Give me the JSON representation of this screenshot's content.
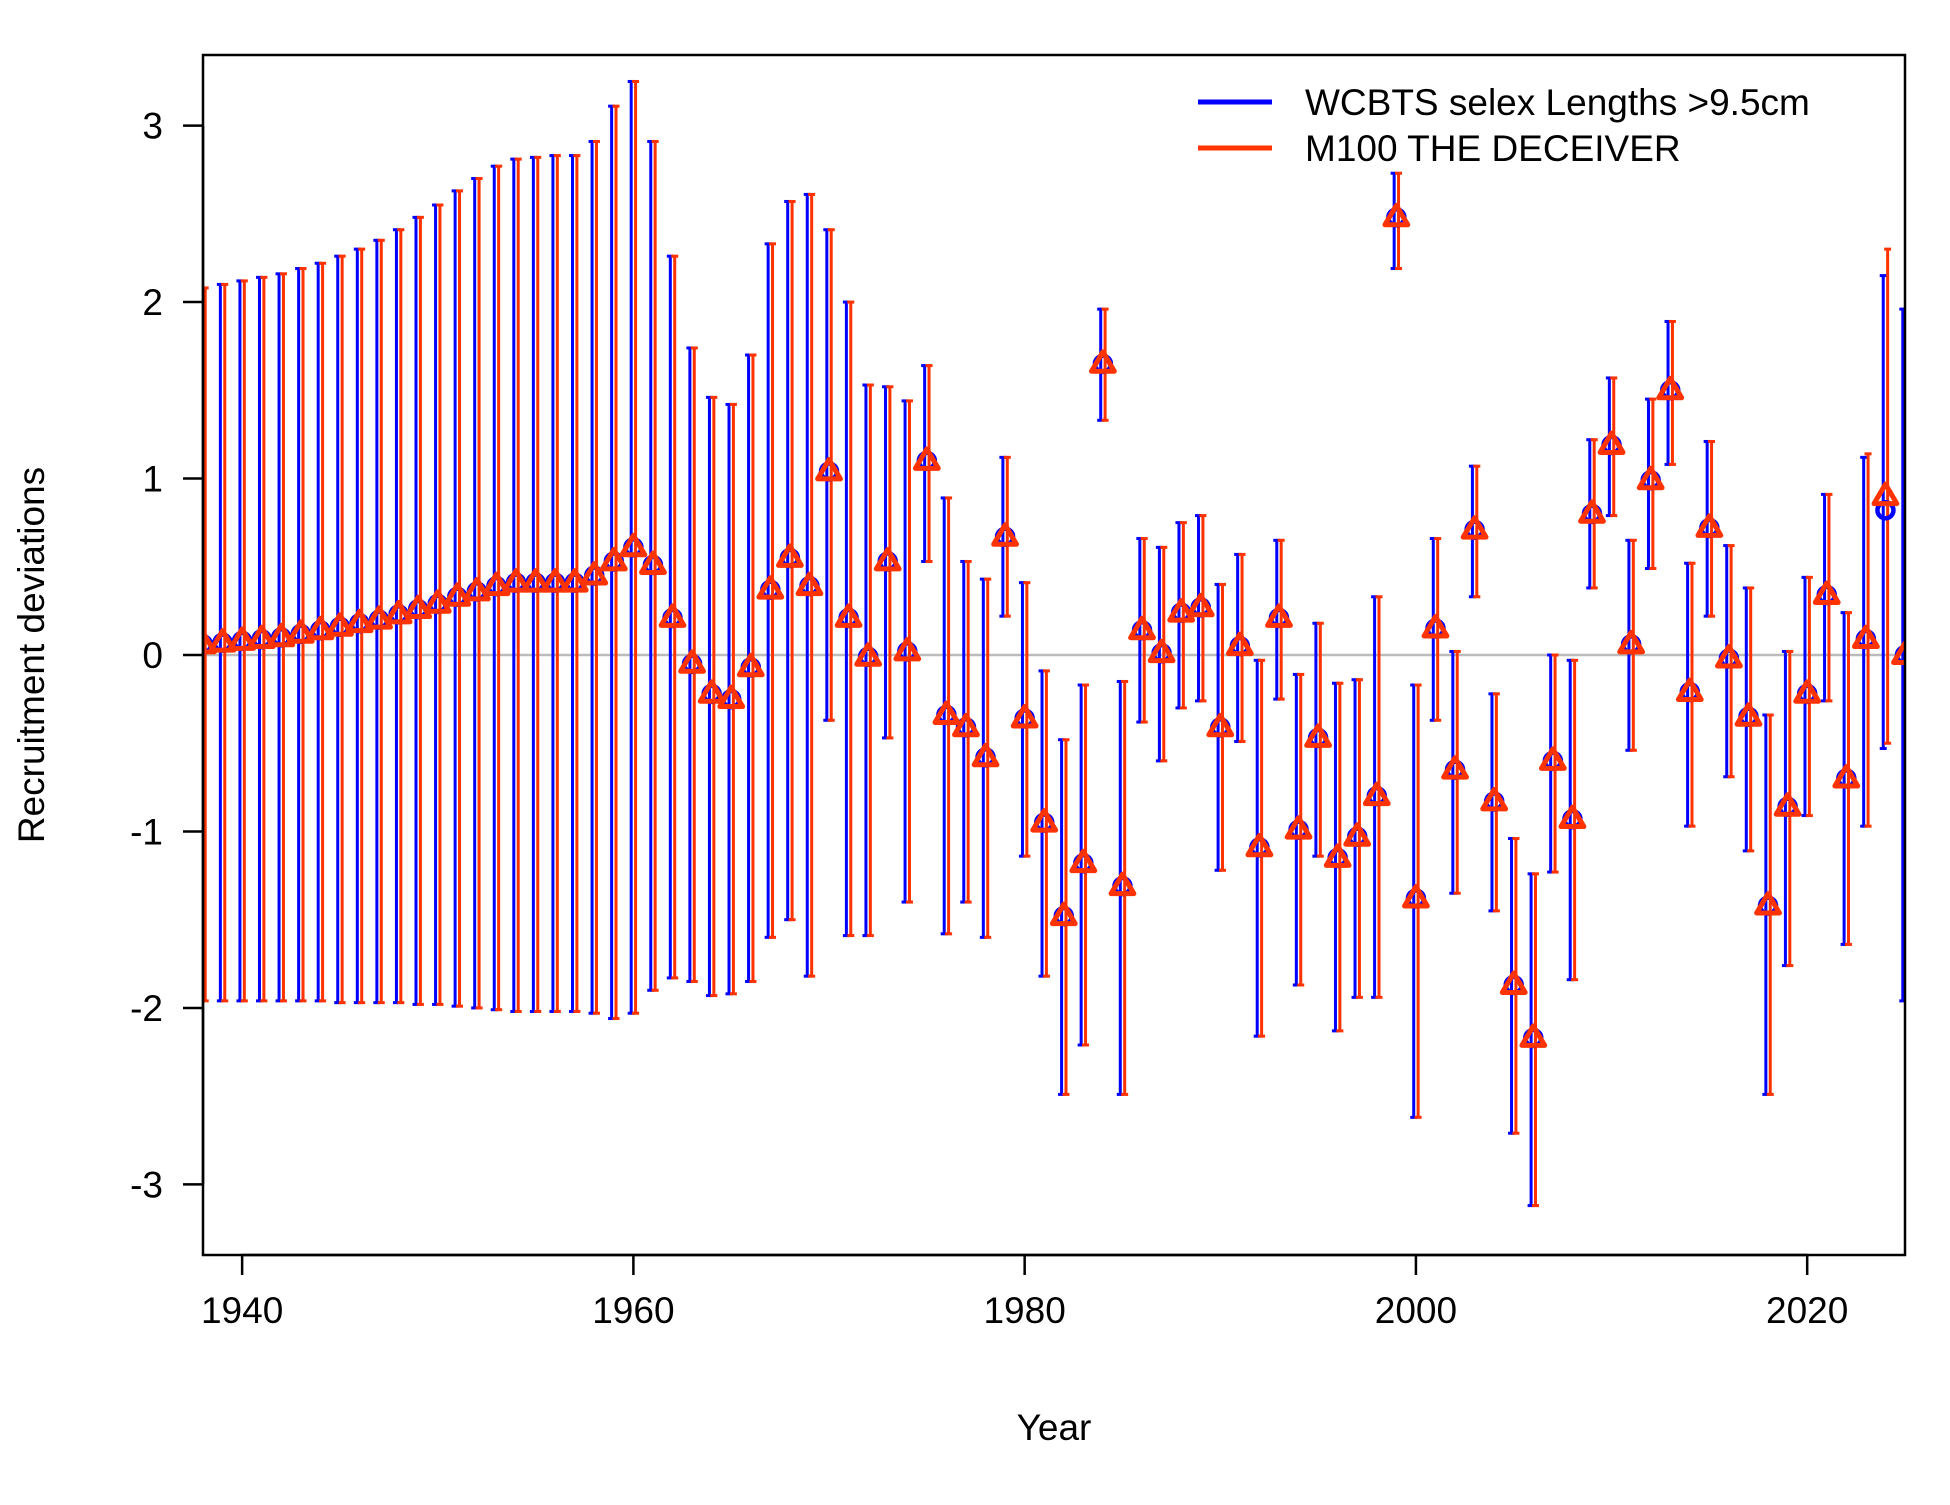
{
  "chart_data": {
    "type": "scatter",
    "xlabel": "Year",
    "ylabel": "Recruitment deviations",
    "xlim": [
      1938,
      2025
    ],
    "ylim": [
      -3.4,
      3.4
    ],
    "x_ticks": [
      1940,
      1960,
      1980,
      2000,
      2020
    ],
    "y_ticks": [
      -3,
      -2,
      -1,
      0,
      1,
      2,
      3
    ],
    "x_tick_labels": [
      "1940",
      "1960",
      "1980",
      "2000",
      "2020"
    ],
    "y_tick_labels": [
      "-3",
      "-2",
      "-1",
      "0",
      "1",
      "2",
      "3"
    ],
    "reference_line": 0,
    "grid": false,
    "legend_position": "top-right",
    "colors": {
      "series1": "#0000FF",
      "series2": "#FF3300",
      "reference": "#BBBBBB"
    },
    "legend": [
      {
        "label": "WCBTS selex Lengths >9.5cm",
        "color": "#0000FF"
      },
      {
        "label": "M100 THE DECEIVER",
        "color": "#FF3300"
      }
    ],
    "x": [
      1938,
      1939,
      1940,
      1941,
      1942,
      1943,
      1944,
      1945,
      1946,
      1947,
      1948,
      1949,
      1950,
      1951,
      1952,
      1953,
      1954,
      1955,
      1956,
      1957,
      1958,
      1959,
      1960,
      1961,
      1962,
      1963,
      1964,
      1965,
      1966,
      1967,
      1968,
      1969,
      1970,
      1971,
      1972,
      1973,
      1974,
      1975,
      1976,
      1977,
      1978,
      1979,
      1980,
      1981,
      1982,
      1983,
      1984,
      1985,
      1986,
      1987,
      1988,
      1989,
      1990,
      1991,
      1992,
      1993,
      1994,
      1995,
      1996,
      1997,
      1998,
      1999,
      2000,
      2001,
      2002,
      2003,
      2004,
      2005,
      2006,
      2007,
      2008,
      2009,
      2010,
      2011,
      2012,
      2013,
      2014,
      2015,
      2016,
      2017,
      2018,
      2019,
      2020,
      2021,
      2022,
      2023,
      2024,
      2025
    ],
    "series": [
      {
        "name": "WCBTS selex Lengths >9.5cm",
        "marker": "circle",
        "values": [
          0.06,
          0.07,
          0.08,
          0.09,
          0.1,
          0.12,
          0.14,
          0.16,
          0.18,
          0.2,
          0.23,
          0.26,
          0.29,
          0.33,
          0.36,
          0.39,
          0.41,
          0.41,
          0.41,
          0.41,
          0.45,
          0.53,
          0.61,
          0.51,
          0.21,
          -0.05,
          -0.22,
          -0.25,
          -0.07,
          0.37,
          0.55,
          0.39,
          1.04,
          0.21,
          -0.01,
          0.53,
          0.02,
          1.1,
          -0.34,
          -0.41,
          -0.58,
          0.67,
          -0.36,
          -0.95,
          -1.48,
          -1.18,
          1.65,
          -1.31,
          0.14,
          0.01,
          0.24,
          0.27,
          -0.41,
          0.05,
          -1.09,
          0.21,
          -0.99,
          -0.47,
          -1.15,
          -1.03,
          -0.8,
          2.48,
          -1.38,
          0.15,
          -0.65,
          0.71,
          -0.83,
          -1.87,
          -2.17,
          -0.6,
          -0.93,
          0.8,
          1.19,
          0.06,
          0.99,
          1.5,
          -0.21,
          0.72,
          -0.02,
          -0.35,
          -1.42,
          -0.86,
          -0.22,
          0.34,
          -0.7,
          0.09,
          0.82,
          0.0
        ],
        "lower": [
          -1.96,
          -1.96,
          -1.96,
          -1.96,
          -1.96,
          -1.96,
          -1.96,
          -1.97,
          -1.97,
          -1.97,
          -1.97,
          -1.98,
          -1.98,
          -1.99,
          -2.0,
          -2.01,
          -2.02,
          -2.02,
          -2.02,
          -2.02,
          -2.03,
          -2.06,
          -2.03,
          -1.9,
          -1.83,
          -1.85,
          -1.93,
          -1.92,
          -1.85,
          -1.6,
          -1.5,
          -1.82,
          -0.37,
          -1.59,
          -1.59,
          -0.47,
          -1.4,
          0.53,
          -1.58,
          -1.4,
          -1.6,
          0.22,
          -1.14,
          -1.82,
          -2.49,
          -2.21,
          1.33,
          -2.49,
          -0.38,
          -0.6,
          -0.3,
          -0.26,
          -1.22,
          -0.49,
          -2.16,
          -0.25,
          -1.87,
          -1.14,
          -2.13,
          -1.94,
          -1.94,
          2.19,
          -2.62,
          -0.37,
          -1.35,
          0.33,
          -1.45,
          -2.71,
          -3.12,
          -1.23,
          -1.84,
          0.38,
          0.79,
          -0.54,
          0.49,
          1.08,
          -0.97,
          0.22,
          -0.69,
          -1.11,
          -2.49,
          -1.76,
          -0.91,
          -0.26,
          -1.64,
          -0.97,
          -0.53,
          -1.96
        ],
        "upper": [
          2.08,
          2.1,
          2.12,
          2.14,
          2.16,
          2.19,
          2.22,
          2.26,
          2.3,
          2.35,
          2.41,
          2.48,
          2.55,
          2.63,
          2.7,
          2.77,
          2.81,
          2.82,
          2.83,
          2.83,
          2.91,
          3.11,
          3.25,
          2.91,
          2.26,
          1.74,
          1.46,
          1.42,
          1.7,
          2.33,
          2.57,
          2.61,
          2.41,
          2.0,
          1.53,
          1.52,
          1.44,
          1.64,
          0.89,
          0.53,
          0.43,
          1.12,
          0.41,
          -0.09,
          -0.48,
          -0.17,
          1.96,
          -0.15,
          0.66,
          0.61,
          0.75,
          0.79,
          0.4,
          0.57,
          -0.03,
          0.65,
          -0.11,
          0.18,
          -0.16,
          -0.14,
          0.33,
          2.73,
          -0.17,
          0.66,
          0.02,
          1.07,
          -0.22,
          -1.04,
          -1.24,
          0.0,
          -0.03,
          1.22,
          1.57,
          0.65,
          1.45,
          1.89,
          0.52,
          1.21,
          0.62,
          0.38,
          -0.34,
          0.02,
          0.44,
          0.91,
          0.24,
          1.12,
          2.15,
          1.96
        ]
      },
      {
        "name": "M100 THE DECEIVER",
        "marker": "triangle",
        "values": [
          0.06,
          0.07,
          0.08,
          0.09,
          0.1,
          0.12,
          0.14,
          0.16,
          0.18,
          0.2,
          0.23,
          0.26,
          0.29,
          0.33,
          0.36,
          0.39,
          0.41,
          0.41,
          0.41,
          0.41,
          0.45,
          0.53,
          0.61,
          0.51,
          0.21,
          -0.05,
          -0.22,
          -0.25,
          -0.07,
          0.37,
          0.55,
          0.39,
          1.04,
          0.21,
          -0.01,
          0.53,
          0.02,
          1.1,
          -0.34,
          -0.41,
          -0.58,
          0.67,
          -0.36,
          -0.95,
          -1.48,
          -1.18,
          1.65,
          -1.31,
          0.14,
          0.01,
          0.24,
          0.27,
          -0.41,
          0.05,
          -1.09,
          0.21,
          -0.99,
          -0.47,
          -1.15,
          -1.03,
          -0.8,
          2.48,
          -1.38,
          0.15,
          -0.65,
          0.71,
          -0.83,
          -1.87,
          -2.17,
          -0.6,
          -0.93,
          0.8,
          1.19,
          0.06,
          0.99,
          1.5,
          -0.21,
          0.72,
          -0.02,
          -0.35,
          -1.42,
          -0.86,
          -0.22,
          0.34,
          -0.7,
          0.09,
          0.9,
          0.0
        ],
        "lower": [
          -1.96,
          -1.96,
          -1.96,
          -1.96,
          -1.96,
          -1.96,
          -1.96,
          -1.97,
          -1.97,
          -1.97,
          -1.97,
          -1.98,
          -1.98,
          -1.99,
          -2.0,
          -2.01,
          -2.02,
          -2.02,
          -2.02,
          -2.02,
          -2.03,
          -2.06,
          -2.03,
          -1.9,
          -1.83,
          -1.85,
          -1.93,
          -1.92,
          -1.85,
          -1.6,
          -1.5,
          -1.82,
          -0.37,
          -1.59,
          -1.59,
          -0.47,
          -1.4,
          0.53,
          -1.58,
          -1.4,
          -1.6,
          0.22,
          -1.14,
          -1.82,
          -2.49,
          -2.21,
          1.33,
          -2.49,
          -0.38,
          -0.6,
          -0.3,
          -0.26,
          -1.22,
          -0.49,
          -2.16,
          -0.25,
          -1.87,
          -1.14,
          -2.13,
          -1.94,
          -1.94,
          2.19,
          -2.62,
          -0.37,
          -1.35,
          0.33,
          -1.45,
          -2.71,
          -3.12,
          -1.23,
          -1.84,
          0.38,
          0.79,
          -0.54,
          0.49,
          1.08,
          -0.97,
          0.22,
          -0.69,
          -1.11,
          -2.49,
          -1.76,
          -0.91,
          -0.26,
          -1.64,
          -0.97,
          -0.5,
          0.0
        ],
        "upper": [
          2.08,
          2.1,
          2.12,
          2.14,
          2.16,
          2.19,
          2.22,
          2.26,
          2.3,
          2.35,
          2.41,
          2.48,
          2.55,
          2.63,
          2.7,
          2.77,
          2.81,
          2.82,
          2.83,
          2.83,
          2.91,
          3.11,
          3.25,
          2.91,
          2.26,
          1.74,
          1.46,
          1.42,
          1.7,
          2.33,
          2.57,
          2.61,
          2.41,
          2.0,
          1.53,
          1.52,
          1.44,
          1.64,
          0.89,
          0.53,
          0.43,
          1.12,
          0.41,
          -0.09,
          -0.48,
          -0.17,
          1.96,
          -0.15,
          0.66,
          0.61,
          0.75,
          0.79,
          0.4,
          0.57,
          -0.03,
          0.65,
          -0.11,
          0.18,
          -0.16,
          -0.14,
          0.33,
          2.73,
          -0.17,
          0.66,
          0.02,
          1.07,
          -0.22,
          -1.04,
          -1.24,
          0.0,
          -0.03,
          1.22,
          1.57,
          0.65,
          1.45,
          1.89,
          0.52,
          1.21,
          0.62,
          0.38,
          -0.34,
          0.02,
          0.44,
          0.91,
          0.24,
          1.14,
          2.3,
          0.0
        ]
      }
    ]
  }
}
